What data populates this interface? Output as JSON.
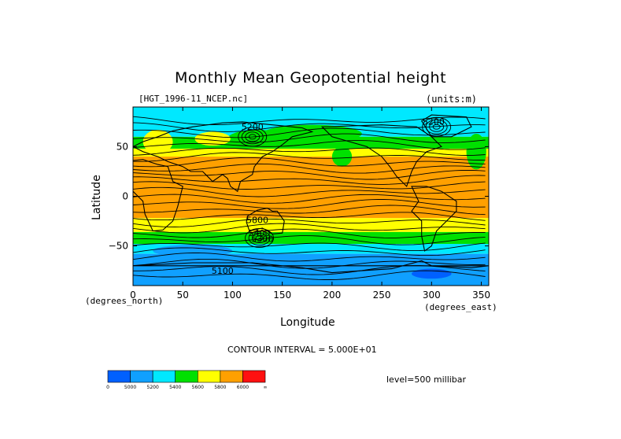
{
  "chart_data": {
    "type": "heatmap",
    "title": "Monthly Mean Geopotential height",
    "dataset_label": "[HGT_1996-11_NCEP.nc]",
    "units_label": "(units:m)",
    "xlabel": "Longitude",
    "ylabel": "Latitude",
    "x_units_label": "(degrees_east)",
    "y_units_label": "(degrees_north)",
    "xlim": [
      0,
      357.5
    ],
    "ylim": [
      -90,
      90
    ],
    "xticks": [
      0,
      50,
      100,
      150,
      200,
      250,
      300,
      350
    ],
    "yticks": [
      50,
      0,
      -50
    ],
    "contour_interval_label": "CONTOUR INTERVAL = 5.000E+01",
    "level_label": "level=500 millibar",
    "colorbar": {
      "colors": [
        "#0060ff",
        "#10a0ff",
        "#00e8ff",
        "#00e000",
        "#ffff00",
        "#ffa000",
        "#ff1010"
      ],
      "labels": [
        "0",
        "5000",
        "5200",
        "5400",
        "5600",
        "5800",
        "6000",
        "∞"
      ]
    },
    "zonal_bands": [
      {
        "lat_from": 90,
        "lat_to": 60,
        "class": 2
      },
      {
        "lat_from": 60,
        "lat_to": 48,
        "class": 3
      },
      {
        "lat_from": 48,
        "lat_to": 40,
        "class": 4
      },
      {
        "lat_from": 40,
        "lat_to": -22,
        "class": 5
      },
      {
        "lat_from": -22,
        "lat_to": -36,
        "class": 4
      },
      {
        "lat_from": -36,
        "lat_to": -48,
        "class": 3
      },
      {
        "lat_from": -48,
        "lat_to": -58,
        "class": 2
      },
      {
        "lat_from": -58,
        "lat_to": -90,
        "class": 1
      }
    ],
    "contour_labels": [
      {
        "text": "5200",
        "lon": 120,
        "lat": 67
      },
      {
        "text": "5200",
        "lon": 302,
        "lat": 72
      },
      {
        "text": "5800",
        "lon": 125,
        "lat": -27
      },
      {
        "text": "5100",
        "lon": 90,
        "lat": -78
      },
      {
        "text": "5400",
        "lon": 127,
        "lat": -40
      },
      {
        "text": "5300",
        "lon": 130,
        "lat": -46
      }
    ]
  }
}
